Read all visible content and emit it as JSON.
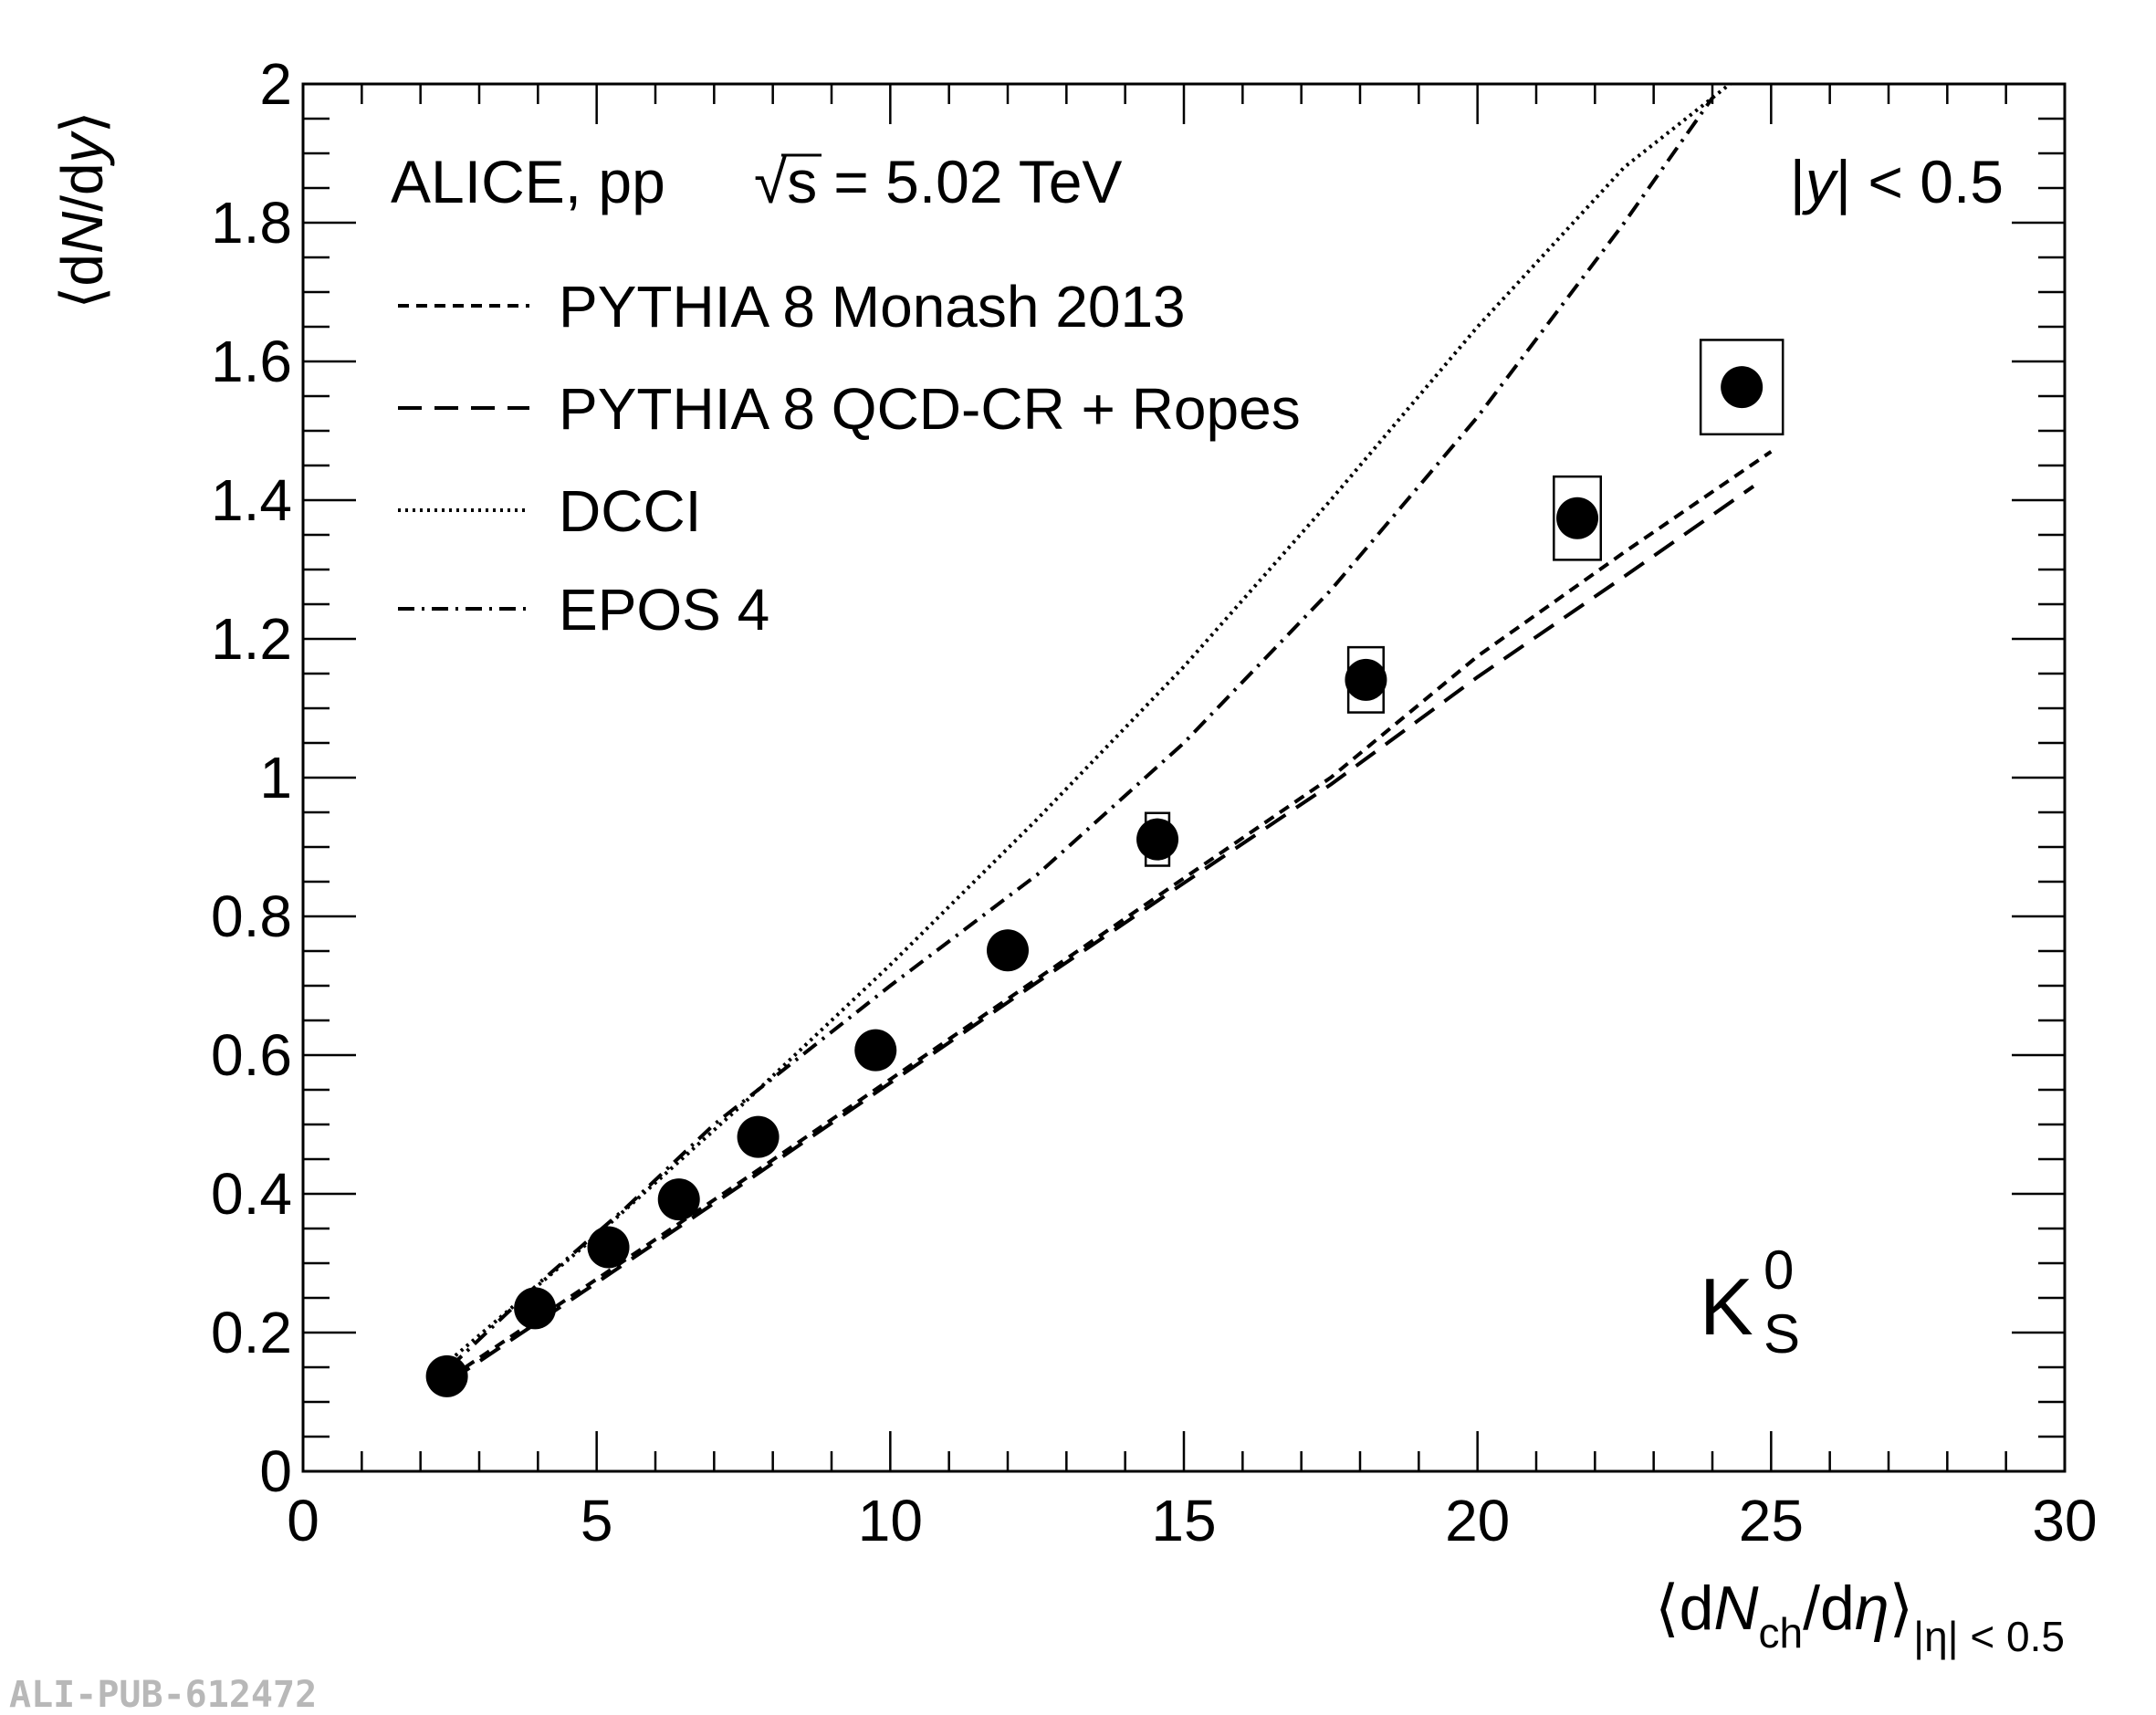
{
  "chart_data": {
    "type": "scatter",
    "title": "",
    "xlabel": "⟨dN_ch/dη⟩_|η| < 0.5",
    "xlabel_parts": {
      "open": "⟨d",
      "N": "N",
      "ch": "ch",
      "slash_d": "/d",
      "eta": "η",
      "close": "⟩",
      "sub": "|η| < 0.5"
    },
    "ylabel": "⟨dN/dy⟩",
    "ylabel_parts": {
      "open": "⟨d",
      "N": "N",
      "mid": "/d",
      "y": "y",
      "close": "⟩"
    },
    "xlim": [
      0,
      30
    ],
    "ylim": [
      0,
      2
    ],
    "x_major_ticks": [
      0,
      5,
      10,
      15,
      20,
      25,
      30
    ],
    "x_tick_labels": [
      "0",
      "5",
      "10",
      "15",
      "20",
      "25",
      "30"
    ],
    "y_major_ticks": [
      0,
      0.2,
      0.4,
      0.6,
      0.8,
      1.0,
      1.2,
      1.4,
      1.6,
      1.8,
      2.0
    ],
    "y_tick_labels": [
      "0",
      "0.2",
      "0.4",
      "0.6",
      "0.8",
      "1",
      "1.2",
      "1.4",
      "1.6",
      "1.8",
      "2"
    ],
    "x_minor_step": 1,
    "y_minor_step": 0.05,
    "grid": false,
    "annotations": {
      "experiment": "ALICE, pp",
      "sqrt": "√",
      "energy_s": "s",
      "energy": "= 5.02 TeV",
      "rapidity_bar": "|",
      "rapidity_y": "y",
      "rapidity_rest": "| < 0.5",
      "particle": "K",
      "particle_sup": "0",
      "particle_sub": "S",
      "pub_id": "ALI-PUB-612472"
    },
    "legend": {
      "placement": "top-left",
      "entries": [
        {
          "label": "PYTHIA 8 Monash 2013",
          "style": "short-dash",
          "series": "monash"
        },
        {
          "label": "PYTHIA 8 QCD-CR + Ropes",
          "style": "long-dash",
          "series": "ropes"
        },
        {
          "label": "DCCI",
          "style": "dotted",
          "series": "dcci"
        },
        {
          "label": "EPOS 4",
          "style": "dash-dot",
          "series": "epos"
        }
      ]
    },
    "data_points": {
      "name": "K0S ALICE data",
      "x": [
        2.45,
        3.95,
        5.2,
        6.4,
        7.75,
        9.75,
        12.0,
        14.55,
        18.1,
        21.7,
        24.5
      ],
      "y": [
        0.137,
        0.235,
        0.323,
        0.392,
        0.482,
        0.607,
        0.751,
        0.911,
        1.141,
        1.374,
        1.563
      ],
      "stat_err": [
        0.002,
        0.003,
        0.004,
        0.005,
        0.006,
        0.007,
        0.03,
        0.03,
        0.02,
        0.02,
        0.01
      ],
      "sys_err": [
        0.005,
        0.009,
        0.012,
        0.014,
        0.018,
        0.022,
        0.027,
        0.038,
        0.047,
        0.06,
        0.068
      ],
      "sys_box_halfwidth": [
        0,
        0,
        0,
        0,
        0,
        0,
        0,
        0.2,
        0.3,
        0.4,
        0.7
      ]
    },
    "series": [
      {
        "name": "PYTHIA 8 Monash 2013",
        "key": "monash",
        "style": "short-dash",
        "x": [
          2.5,
          5,
          7.5,
          10,
          12.5,
          15,
          17.5,
          20,
          22.5,
          25
        ],
        "y": [
          0.135,
          0.277,
          0.42,
          0.565,
          0.71,
          0.855,
          1.0,
          1.175,
          1.325,
          1.47
        ]
      },
      {
        "name": "PYTHIA 8 QCD-CR + Ropes",
        "key": "ropes",
        "style": "long-dash",
        "x": [
          2.5,
          5,
          7.5,
          10,
          12.5,
          15,
          17.5,
          20,
          22.5,
          24.7
        ],
        "y": [
          0.13,
          0.272,
          0.415,
          0.56,
          0.705,
          0.848,
          0.99,
          1.145,
          1.29,
          1.42
        ]
      },
      {
        "name": "DCCI",
        "key": "dcci",
        "style": "dotted",
        "x": [
          2.5,
          5,
          7.5,
          10,
          12.5,
          15,
          17.5,
          20,
          22.5,
          24.3
        ],
        "y": [
          0.16,
          0.34,
          0.53,
          0.73,
          0.94,
          1.16,
          1.4,
          1.65,
          1.88,
          2.0
        ]
      },
      {
        "name": "EPOS 4",
        "key": "epos",
        "style": "dash-dot",
        "x": [
          2.5,
          4,
          5.5,
          7,
          8.5,
          10,
          12.5,
          15,
          17.5,
          20,
          22.5,
          24.0
        ],
        "y": [
          0.15,
          0.27,
          0.38,
          0.5,
          0.6,
          0.7,
          0.86,
          1.05,
          1.27,
          1.52,
          1.8,
          1.98
        ]
      }
    ]
  }
}
